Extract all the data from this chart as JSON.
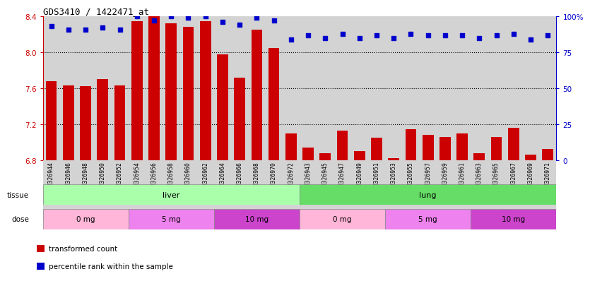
{
  "title": "GDS3410 / 1422471_at",
  "samples": [
    "GSM326944",
    "GSM326946",
    "GSM326948",
    "GSM326950",
    "GSM326952",
    "GSM326954",
    "GSM326956",
    "GSM326958",
    "GSM326960",
    "GSM326962",
    "GSM326964",
    "GSM326966",
    "GSM326968",
    "GSM326970",
    "GSM326972",
    "GSM326943",
    "GSM326945",
    "GSM326947",
    "GSM326949",
    "GSM326951",
    "GSM326953",
    "GSM326955",
    "GSM326957",
    "GSM326959",
    "GSM326961",
    "GSM326963",
    "GSM326965",
    "GSM326967",
    "GSM326969",
    "GSM326971"
  ],
  "transformed_count": [
    7.68,
    7.63,
    7.62,
    7.7,
    7.63,
    8.35,
    8.56,
    8.32,
    8.28,
    8.35,
    7.98,
    7.72,
    8.25,
    8.05,
    7.1,
    6.94,
    6.88,
    7.13,
    6.9,
    7.05,
    6.82,
    7.14,
    7.08,
    7.06,
    7.1,
    6.88,
    7.06,
    7.16,
    6.86,
    6.92
  ],
  "percentile_rank": [
    93,
    91,
    91,
    92,
    91,
    100,
    97,
    100,
    99,
    100,
    96,
    94,
    99,
    97,
    84,
    87,
    85,
    88,
    85,
    87,
    85,
    88,
    87,
    87,
    87,
    85,
    87,
    88,
    84,
    87
  ],
  "ylim_left": [
    6.8,
    8.4
  ],
  "ylim_right": [
    0,
    100
  ],
  "yticks_left": [
    6.8,
    7.2,
    7.6,
    8.0,
    8.4
  ],
  "yticks_right": [
    0,
    25,
    50,
    75,
    100
  ],
  "ytick_labels_right": [
    "0",
    "25",
    "50",
    "75",
    "100%"
  ],
  "bar_color": "#CC0000",
  "dot_color": "#0000CC",
  "axis_color_left": "#CC0000",
  "axis_color_right": "#0000CC",
  "bg_color": "#D3D3D3",
  "tissue_liver_color": "#AAFFAA",
  "tissue_lung_color": "#66DD66",
  "dose_0mg_color": "#FFB6D9",
  "dose_5mg_color": "#EE82EE",
  "dose_10mg_color": "#CC44CC",
  "dose_groups": [
    {
      "label": "0 mg",
      "start": 0,
      "end": 5
    },
    {
      "label": "5 mg",
      "start": 5,
      "end": 10
    },
    {
      "label": "10 mg",
      "start": 10,
      "end": 15
    },
    {
      "label": "0 mg",
      "start": 15,
      "end": 20
    },
    {
      "label": "5 mg",
      "start": 20,
      "end": 25
    },
    {
      "label": "10 mg",
      "start": 25,
      "end": 30
    }
  ],
  "legend_items": [
    {
      "color": "#CC0000",
      "label": "transformed count"
    },
    {
      "color": "#0000CC",
      "label": "percentile rank within the sample"
    }
  ]
}
